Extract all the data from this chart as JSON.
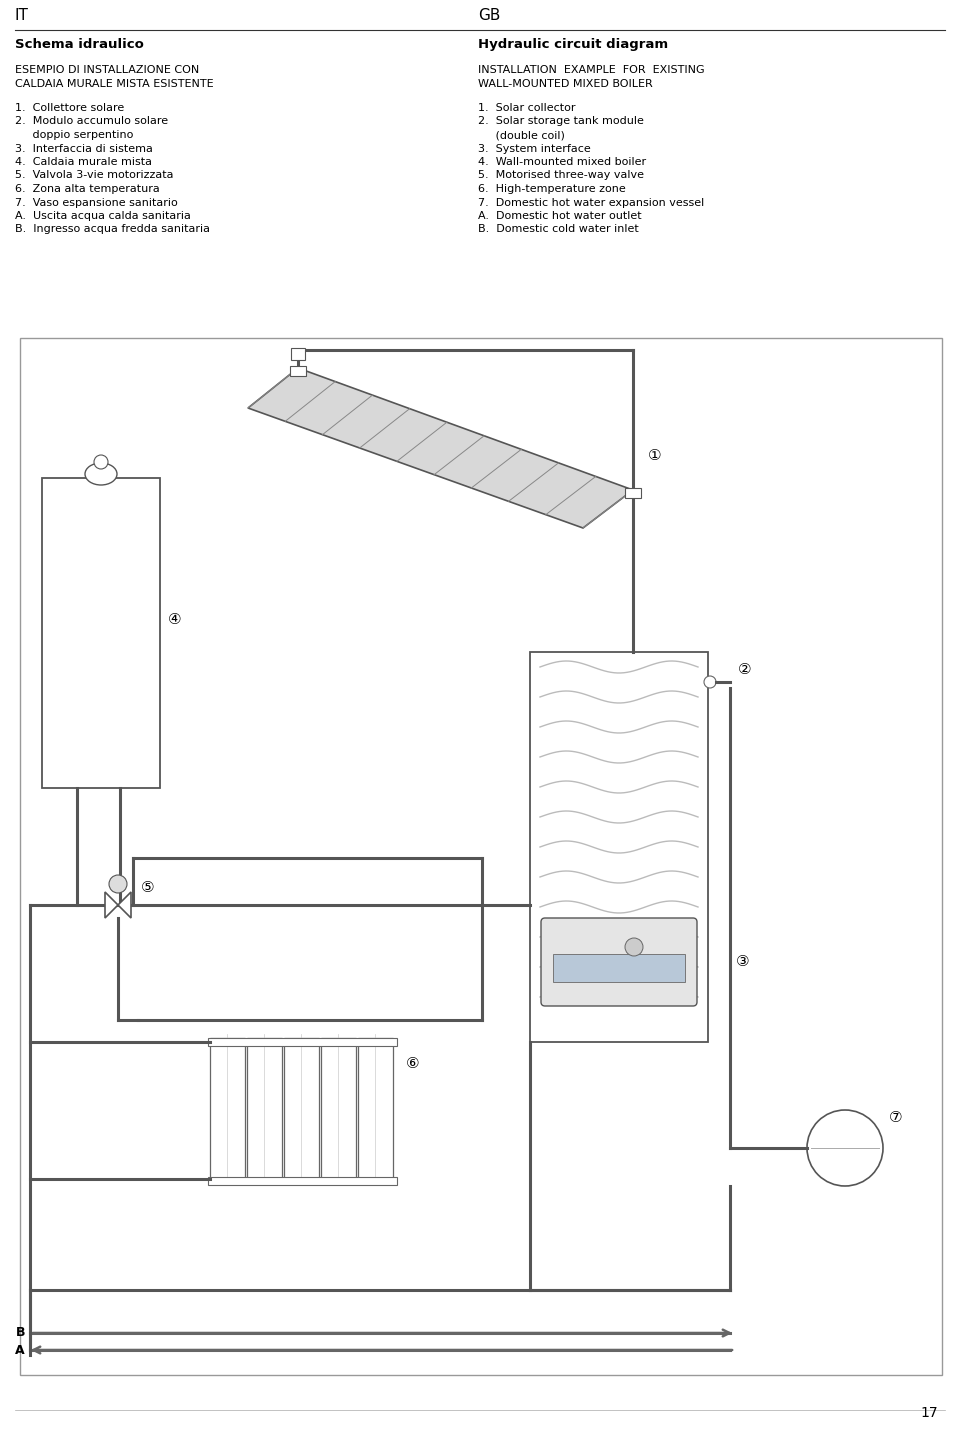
{
  "title_it": "IT",
  "title_gb": "GB",
  "schema_it": "Schema idraulico",
  "schema_gb": "Hydraulic circuit diagram",
  "example_it_line1": "ESEMPIO DI INSTALLAZIONE CON",
  "example_it_line2": "CALDAIA MURALE MISTA ESISTENTE",
  "example_gb_line1": "INSTALLATION  EXAMPLE  FOR  EXISTING",
  "example_gb_line2": "WALL-MOUNTED MIXED BOILER",
  "items_it": [
    "1.  Collettore solare",
    "2.  Modulo accumulo solare",
    "     doppio serpentino",
    "3.  Interfaccia di sistema",
    "4.  Caldaia murale mista",
    "5.  Valvola 3-vie motorizzata",
    "6.  Zona alta temperatura",
    "7.  Vaso espansione sanitario",
    "A.  Uscita acqua calda sanitaria",
    "B.  Ingresso acqua fredda sanitaria"
  ],
  "items_gb": [
    "1.  Solar collector",
    "2.  Solar storage tank module",
    "     (double coil)",
    "3.  System interface",
    "4.  Wall-mounted mixed boiler",
    "5.  Motorised three-way valve",
    "6.  High-temperature zone",
    "7.  Domestic hot water expansion vessel",
    "A.  Domestic hot water outlet",
    "B.  Domestic cold water inlet"
  ],
  "page_number": "17",
  "bg_color": "#ffffff",
  "lc": "#555555",
  "lc_light": "#aaaaaa"
}
